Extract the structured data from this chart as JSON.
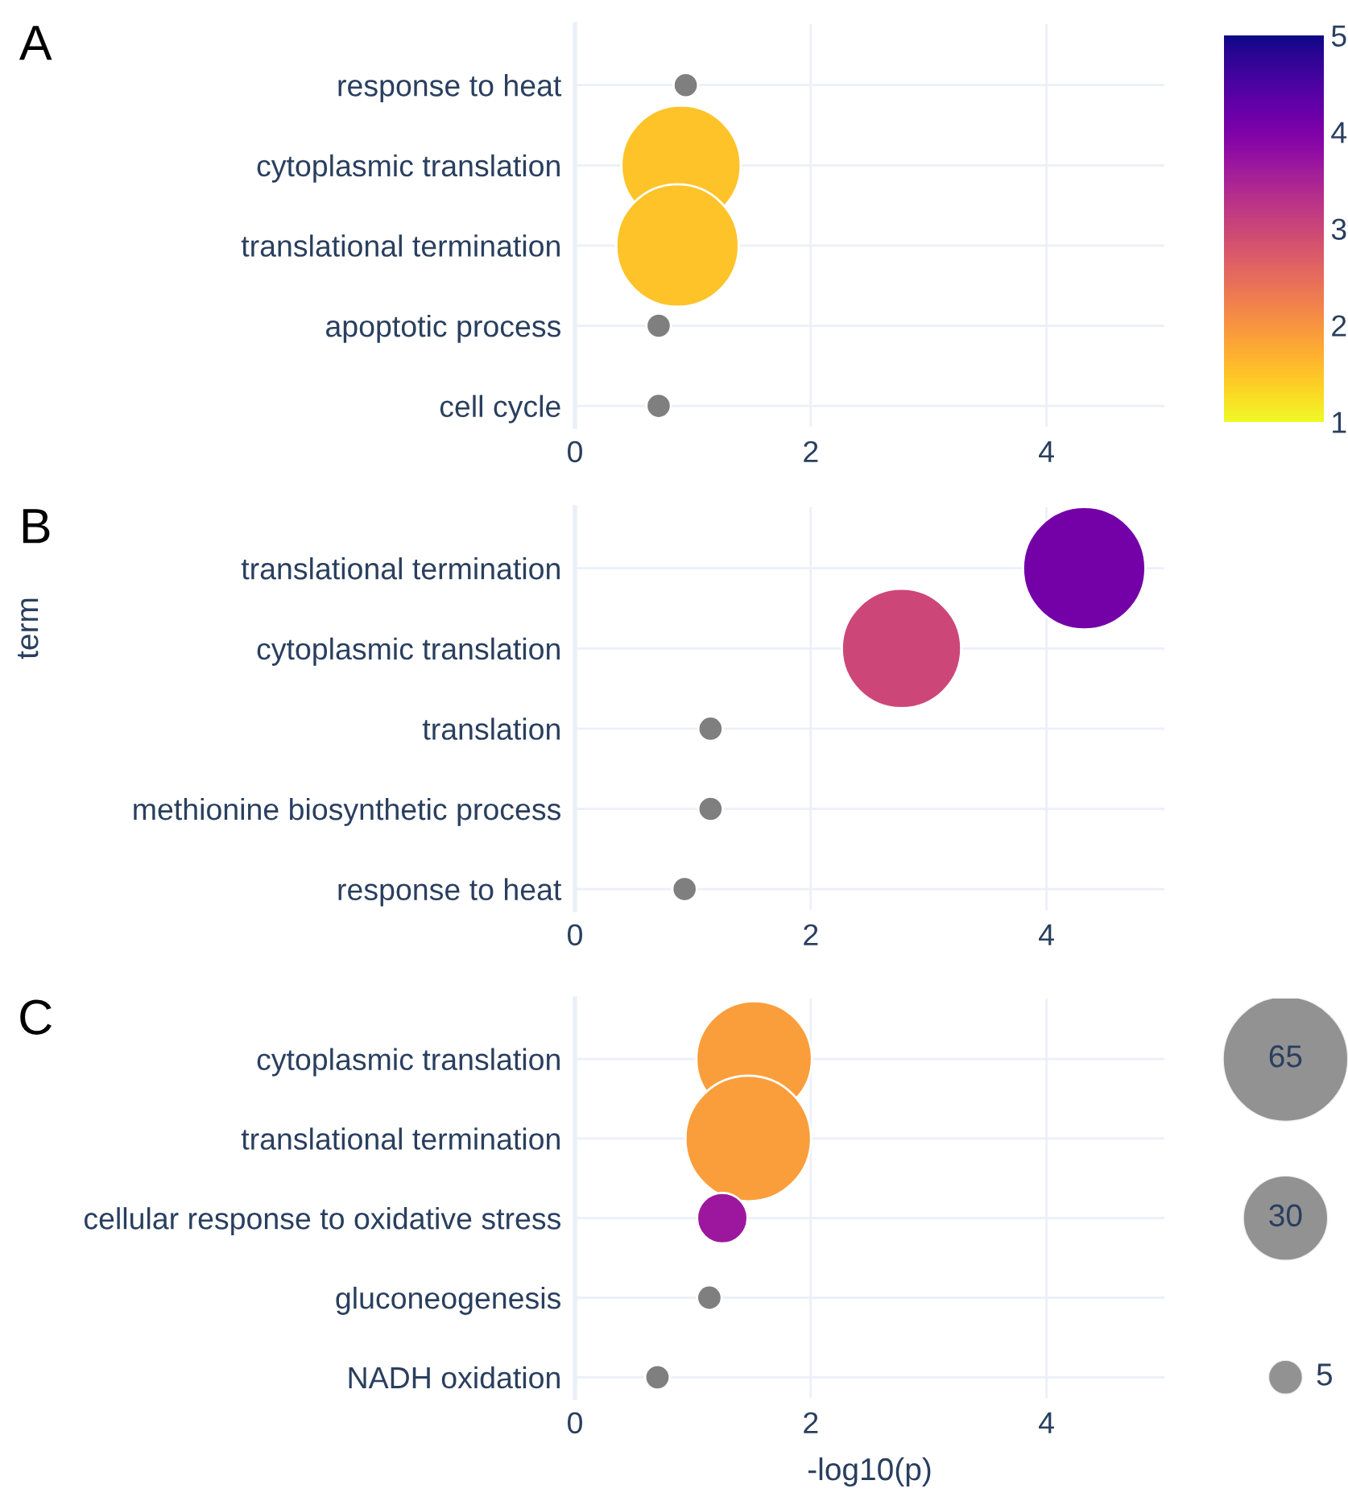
{
  "chart_data": [
    {
      "type": "bubble",
      "orientation": "horizontal",
      "title": "A",
      "categories": [
        "response to heat",
        "cytoplasmic translation",
        "translational termination",
        "apoptotic process",
        "cell cycle"
      ],
      "values": [
        0.94,
        0.9,
        0.87,
        0.71,
        0.71
      ],
      "sizes": [
        0.04,
        0.95,
        1,
        0.04,
        0.04
      ],
      "cvalues": [
        null,
        1.5,
        1.5,
        null,
        null
      ],
      "colors": [
        "#7f7f7f",
        null,
        null,
        "#7f7f7f",
        "#7f7f7f"
      ],
      "clim": [
        1,
        5
      ],
      "cticks": [
        1,
        2,
        3,
        4,
        5
      ],
      "xlim": [
        0,
        5
      ],
      "xticks": [
        0,
        2,
        4
      ],
      "grid": true
    },
    {
      "type": "bubble",
      "orientation": "horizontal",
      "title": "B",
      "ylabel": "term",
      "categories": [
        "translational termination",
        "cytoplasmic translation",
        "translation",
        "methionine biosynthetic process",
        "response to heat"
      ],
      "values": [
        4.32,
        2.77,
        1.15,
        1.15,
        0.93
      ],
      "sizes": [
        1,
        0.95,
        0.04,
        0.04,
        0.04
      ],
      "colors": [
        "#7401a8",
        "#cc4778",
        "#7f7f7f",
        "#7f7f7f",
        "#7f7f7f"
      ],
      "xlim": [
        0,
        5
      ],
      "xticks": [
        0,
        2,
        4
      ],
      "grid": true
    },
    {
      "type": "bubble",
      "orientation": "horizontal",
      "title": "C",
      "xlabel": "-log10(p)",
      "categories": [
        "cytoplasmic translation",
        "translational termination",
        "cellular response to oxidative stress",
        "gluconeogenesis",
        "NADH oxidation"
      ],
      "values": [
        1.52,
        1.47,
        1.25,
        1.14,
        0.7
      ],
      "sizes": [
        55,
        65,
        10.5,
        2.5,
        2.5
      ],
      "colors": [
        "#fa9e3b",
        "#fa9e3b",
        "#9c179e",
        "#7f7f7f",
        "#7f7f7f"
      ],
      "size_legend": [
        65,
        30,
        5
      ],
      "xlim": [
        0,
        5
      ],
      "xticks": [
        0,
        2,
        4
      ],
      "grid": true
    }
  ]
}
